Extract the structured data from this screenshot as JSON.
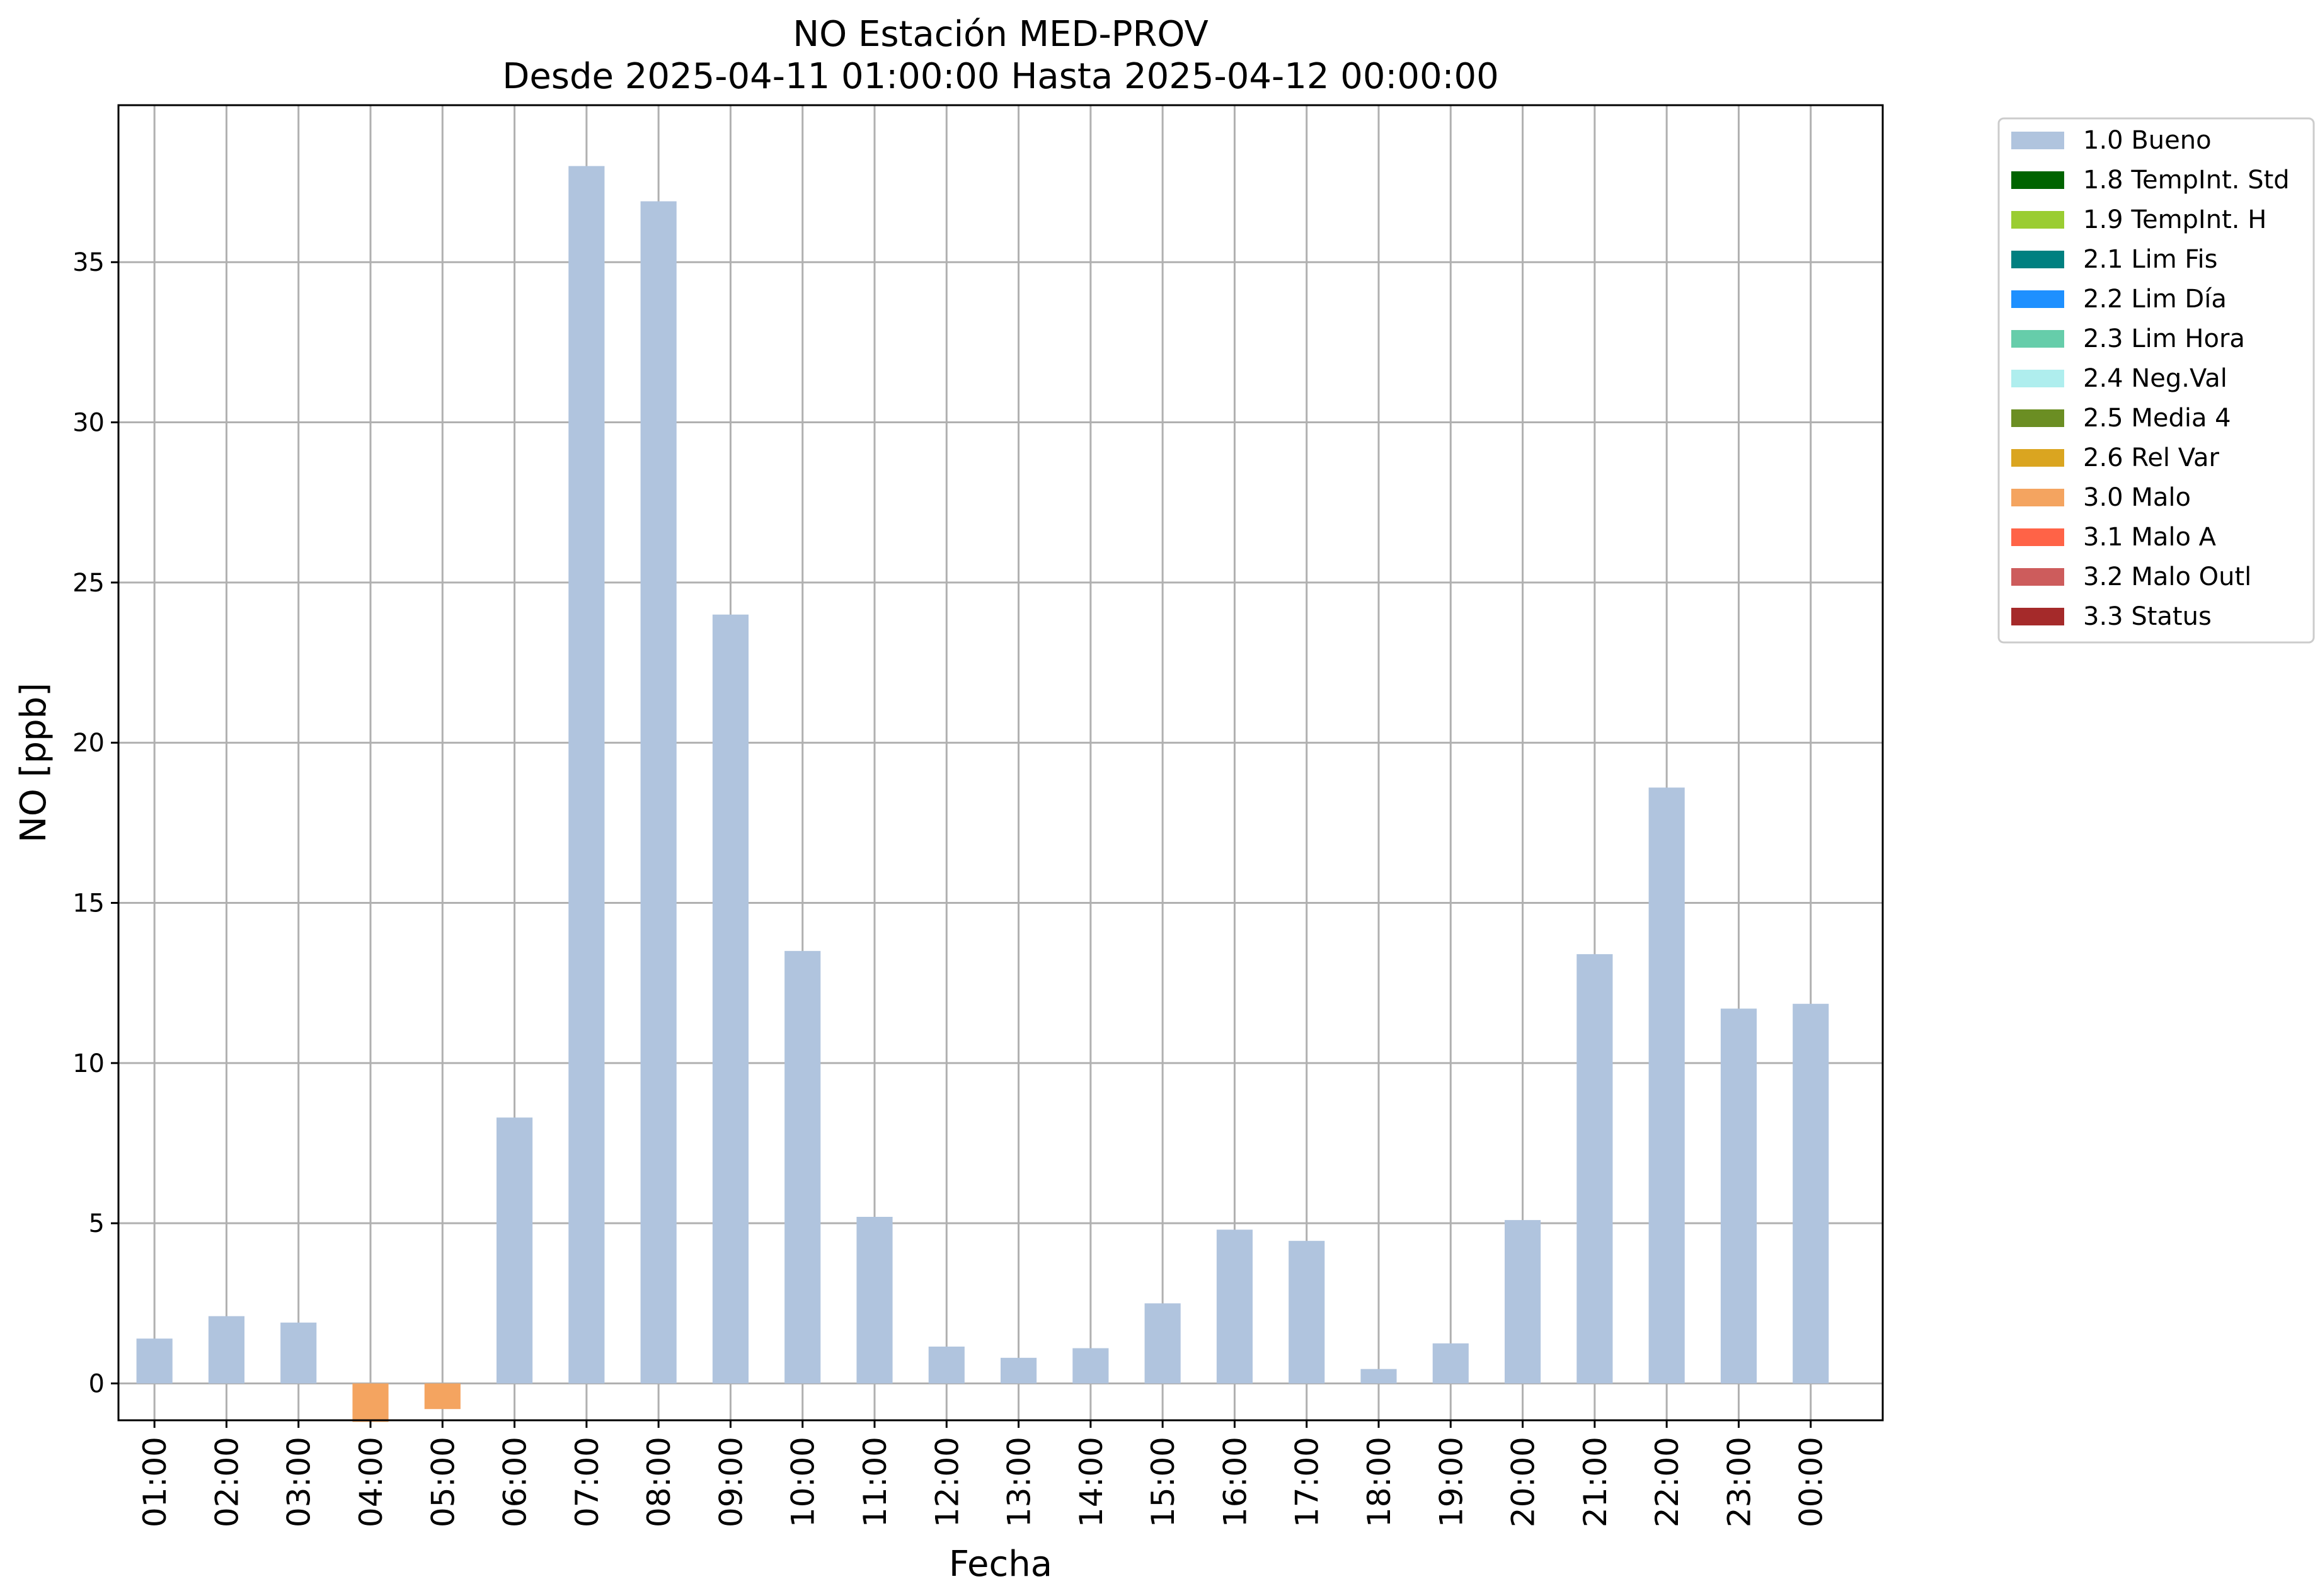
{
  "chart_data": {
    "type": "bar",
    "title": "NO Estación MED-PROV",
    "subtitle": "Desde 2025-04-11 01:00:00 Hasta 2025-04-12 00:00:00",
    "xlabel": "Fecha",
    "ylabel": "NO [ppb]",
    "ylim": [
      -1.15,
      39.9
    ],
    "yticks": [
      0,
      5,
      10,
      15,
      20,
      25,
      30,
      35
    ],
    "grid": true,
    "legend_position": "outside-top-right",
    "categories": [
      "01:00",
      "02:00",
      "03:00",
      "04:00",
      "05:00",
      "06:00",
      "07:00",
      "08:00",
      "09:00",
      "10:00",
      "11:00",
      "12:00",
      "13:00",
      "14:00",
      "15:00",
      "16:00",
      "17:00",
      "18:00",
      "19:00",
      "20:00",
      "21:00",
      "22:00",
      "23:00",
      "00:00"
    ],
    "values": [
      1.4,
      2.1,
      1.9,
      -1.2,
      -0.8,
      8.3,
      38.0,
      36.9,
      24.0,
      13.5,
      5.2,
      1.15,
      0.8,
      1.1,
      2.5,
      4.8,
      4.45,
      0.45,
      1.25,
      5.1,
      13.4,
      18.6,
      11.7,
      11.85
    ],
    "flags": [
      "1.0",
      "1.0",
      "1.0",
      "3.0",
      "3.0",
      "1.0",
      "1.0",
      "1.0",
      "1.0",
      "1.0",
      "1.0",
      "1.0",
      "1.0",
      "1.0",
      "1.0",
      "1.0",
      "1.0",
      "1.0",
      "1.0",
      "1.0",
      "1.0",
      "1.0",
      "1.0",
      "1.0"
    ],
    "legend": [
      {
        "code": "1.0",
        "label": "1.0 Bueno",
        "color": "#b0c4de"
      },
      {
        "code": "1.8",
        "label": "1.8 TempInt. Std",
        "color": "#006400"
      },
      {
        "code": "1.9",
        "label": "1.9 TempInt. H",
        "color": "#9acd32"
      },
      {
        "code": "2.1",
        "label": "2.1 Lim Fis",
        "color": "#008080"
      },
      {
        "code": "2.2",
        "label": "2.2 Lim Día",
        "color": "#1e90ff"
      },
      {
        "code": "2.3",
        "label": "2.3 Lim Hora",
        "color": "#66cdaa"
      },
      {
        "code": "2.4",
        "label": "2.4 Neg.Val",
        "color": "#afeeee"
      },
      {
        "code": "2.5",
        "label": "2.5 Media 4",
        "color": "#6b8e23"
      },
      {
        "code": "2.6",
        "label": "2.6 Rel Var",
        "color": "#daa520"
      },
      {
        "code": "3.0",
        "label": "3.0 Malo",
        "color": "#f4a460"
      },
      {
        "code": "3.1",
        "label": "3.1 Malo A",
        "color": "#ff6347"
      },
      {
        "code": "3.2",
        "label": "3.2 Malo Outl",
        "color": "#cd5c5c"
      },
      {
        "code": "3.3",
        "label": "3.3 Status",
        "color": "#a52a2a"
      }
    ]
  }
}
